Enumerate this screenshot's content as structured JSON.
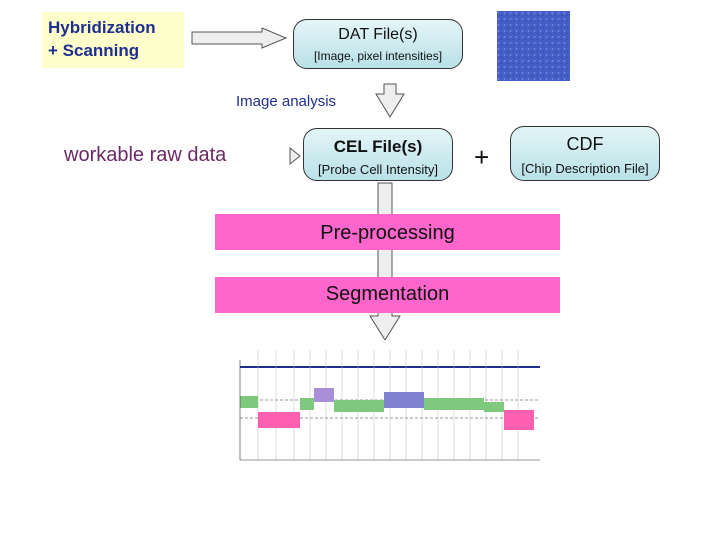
{
  "hybridization": {
    "line1": "Hybridization",
    "line2": "+ Scanning"
  },
  "dat_file": {
    "title": "DAT File(s)",
    "subtitle": "[Image, pixel intensities]"
  },
  "image_analysis": "Image analysis",
  "raw_label": "workable raw data",
  "cel_file": {
    "title": "CEL File(s)",
    "subtitle": "[Probe Cell Intensity]"
  },
  "plus": "+",
  "cdf": {
    "title": "CDF",
    "subtitle": "[Chip Description File]"
  },
  "preprocessing": "Pre-processing",
  "segmentation": "Segmentation",
  "colors": {
    "accent_blue": "#1f2f8f",
    "band_pink": "#ff66cc",
    "box_teal": "#bfe3ea",
    "hyb_yellow": "#ffffcc"
  }
}
